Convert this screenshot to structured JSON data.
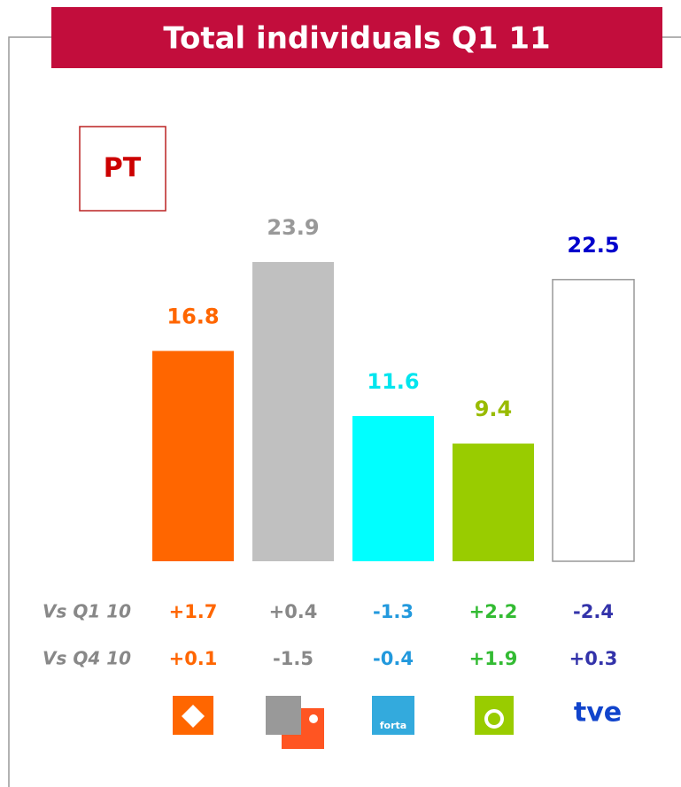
{
  "chart_data": {
    "type": "bar",
    "title": "Total individuals Q1 11",
    "badge": "PT",
    "categories": [
      null,
      null,
      "forta",
      null,
      "tve"
    ],
    "values": [
      16.8,
      23.9,
      11.6,
      9.4,
      22.5
    ],
    "colors": [
      "#ff6600",
      "#c0c0c0",
      "#00ffff",
      "#99cc00",
      "#ffffff"
    ],
    "label_colors": [
      "#ff6600",
      "#999999",
      "#00e5ee",
      "#99bb00",
      "#0000cc"
    ],
    "changes": [
      {
        "name": "Vs Q1 10",
        "values": [
          1.7,
          0.4,
          -1.3,
          2.2,
          -2.4
        ],
        "value_labels": [
          "+1.7",
          "+0.4",
          "-1.3",
          "+2.2",
          "-2.4"
        ]
      },
      {
        "name": "Vs Q4 10",
        "values": [
          0.1,
          -1.5,
          -0.4,
          1.9,
          0.3
        ],
        "value_labels": [
          "+0.1",
          "-1.5",
          "-0.4",
          "+1.9",
          "+0.3"
        ]
      }
    ],
    "change_colors": [
      "#ff6600",
      "#888888",
      "#2299dd",
      "#33bb33",
      "#3333aa"
    ]
  }
}
